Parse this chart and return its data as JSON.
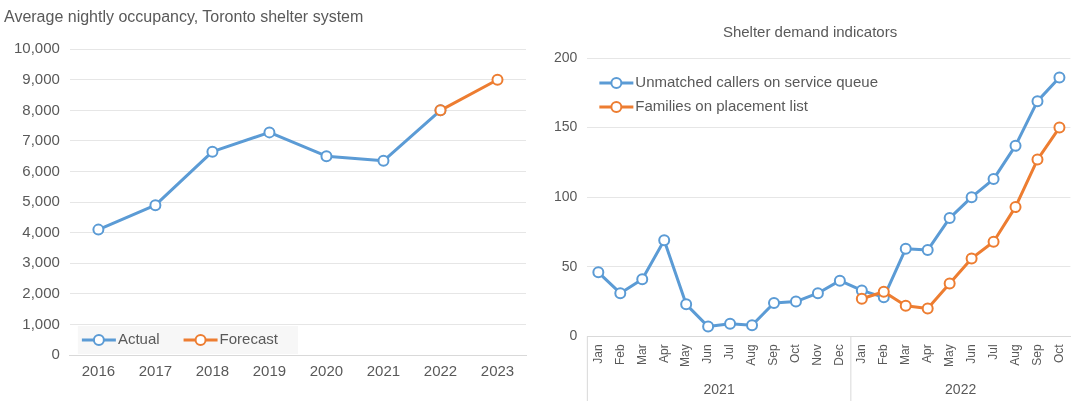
{
  "chart_data": [
    {
      "type": "line",
      "title": "Average nightly occupancy, Toronto shelter system",
      "categories": [
        "2016",
        "2017",
        "2018",
        "2019",
        "2020",
        "2021",
        "2022",
        "2023"
      ],
      "series": [
        {
          "name": "Actual",
          "color": "#5b9bd5",
          "values": [
            4100,
            4900,
            6650,
            7280,
            6500,
            6350,
            8000,
            null
          ]
        },
        {
          "name": "Forecast",
          "color": "#ed7d31",
          "values": [
            null,
            null,
            null,
            null,
            null,
            null,
            8000,
            9000
          ]
        }
      ],
      "ylim": [
        0,
        10000
      ],
      "yticks": [
        {
          "value": 0,
          "label": "0"
        },
        {
          "value": 1000,
          "label": "1,000"
        },
        {
          "value": 2000,
          "label": "2,000"
        },
        {
          "value": 3000,
          "label": "3,000"
        },
        {
          "value": 4000,
          "label": "4,000"
        },
        {
          "value": 5000,
          "label": "5,000"
        },
        {
          "value": 6000,
          "label": "6,000"
        },
        {
          "value": 7000,
          "label": "7,000"
        },
        {
          "value": 8000,
          "label": "8,000"
        },
        {
          "value": 9000,
          "label": "9,000"
        },
        {
          "value": 10000,
          "label": "10,000"
        }
      ],
      "grid": "y",
      "legend": "bottom left",
      "marker": "circle",
      "line_style": "solid"
    },
    {
      "type": "line",
      "title": "Shelter demand indicators",
      "categories": [
        "Jan",
        "Feb",
        "Mar",
        "Apr",
        "May",
        "Jun",
        "Jul",
        "Aug",
        "Sep",
        "Oct",
        "Nov",
        "Dec",
        "Jan",
        "Feb",
        "Mar",
        "Apr",
        "May",
        "Jun",
        "Jul",
        "Aug",
        "Sep",
        "Oct"
      ],
      "series": [
        {
          "name": "Unmatched callers on service queue",
          "color": "#5b9bd5",
          "values": [
            46,
            31,
            41,
            69,
            23,
            7,
            9,
            8,
            24,
            25,
            31,
            40,
            33,
            28,
            63,
            62,
            85,
            100,
            113,
            137,
            169,
            186
          ]
        },
        {
          "name": "Families on placement list",
          "color": "#ed7d31",
          "values": [
            null,
            null,
            null,
            null,
            null,
            null,
            null,
            null,
            null,
            null,
            null,
            null,
            27,
            32,
            22,
            20,
            38,
            56,
            68,
            93,
            127,
            150
          ]
        }
      ],
      "ylim": [
        0,
        200
      ],
      "yticks": [
        0,
        50,
        100,
        150,
        200
      ],
      "annotations": [
        "2021",
        "2022"
      ],
      "grid": "y",
      "legend": "top left",
      "marker": "circle",
      "line_style": "solid"
    }
  ]
}
